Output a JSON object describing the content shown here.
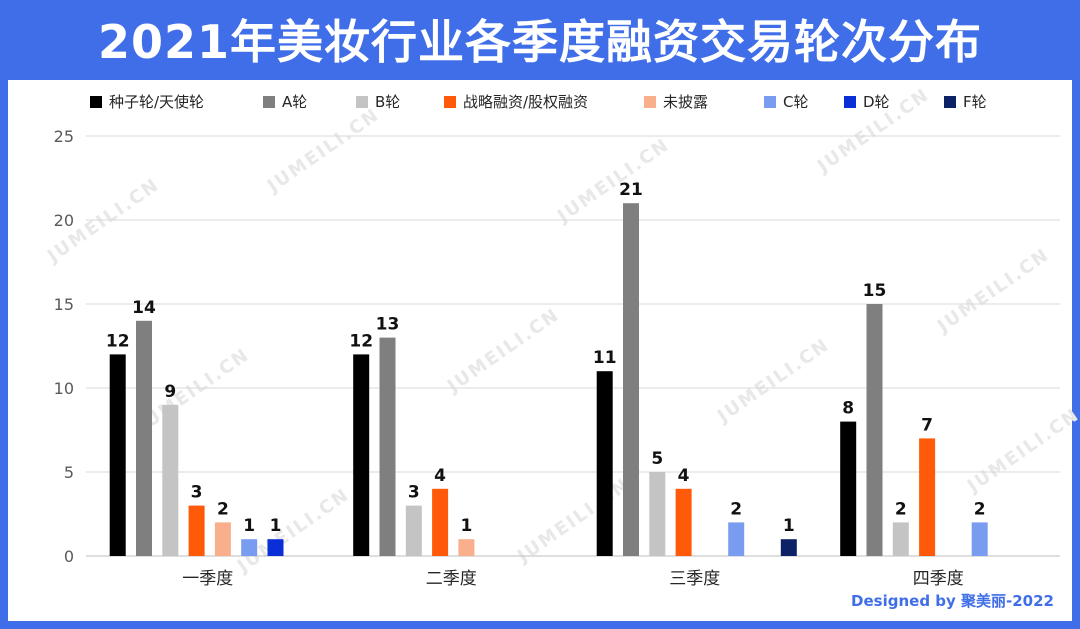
{
  "title": "2021年美妆行业各季度融资交易轮次分布",
  "footer": "Designed by 聚美丽-2022",
  "watermark": "JUMEILI.CN",
  "chart_data": {
    "type": "bar",
    "categories": [
      "一季度",
      "二季度",
      "三季度",
      "四季度"
    ],
    "ylim": [
      0,
      25
    ],
    "yticks": [
      0,
      5,
      10,
      15,
      20,
      25
    ],
    "legend_position": "top",
    "grid": true,
    "series": [
      {
        "name": "种子轮/天使轮",
        "color": "#000000",
        "values": [
          12,
          12,
          11,
          8
        ]
      },
      {
        "name": "A轮",
        "color": "#7f7f7f",
        "values": [
          14,
          13,
          21,
          15
        ]
      },
      {
        "name": "B轮",
        "color": "#c4c4c4",
        "values": [
          9,
          3,
          5,
          2
        ]
      },
      {
        "name": "战略融资/股权融资",
        "color": "#ff5a0a",
        "values": [
          3,
          4,
          4,
          7
        ]
      },
      {
        "name": "未披露",
        "color": "#f9ae8c",
        "values": [
          2,
          1,
          null,
          null
        ]
      },
      {
        "name": "C轮",
        "color": "#7a9cf0",
        "values": [
          1,
          null,
          2,
          2
        ]
      },
      {
        "name": "D轮",
        "color": "#0a2fd6",
        "values": [
          1,
          null,
          null,
          null
        ]
      },
      {
        "name": "F轮",
        "color": "#0b2266",
        "values": [
          null,
          null,
          1,
          null
        ]
      }
    ]
  }
}
